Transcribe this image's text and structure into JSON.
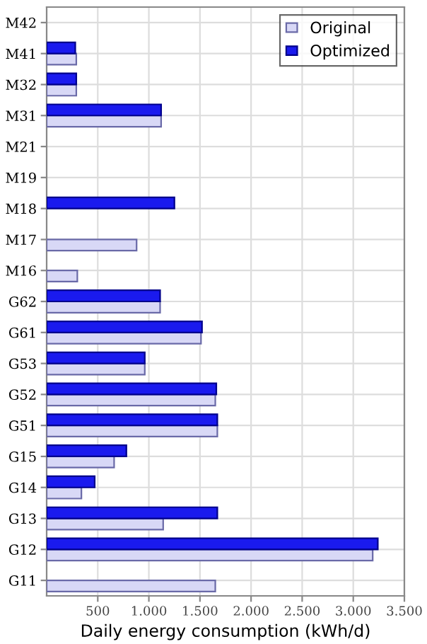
{
  "chart_data": {
    "type": "bar",
    "orientation": "horizontal",
    "xlabel": "Daily energy consumption (kWh/d)",
    "categories": [
      "M42",
      "M41",
      "M32",
      "M31",
      "M21",
      "M19",
      "M18",
      "M17",
      "M16",
      "G62",
      "G61",
      "G53",
      "G52",
      "G51",
      "G15",
      "G14",
      "G13",
      "G12",
      "G11"
    ],
    "series": [
      {
        "name": "Original",
        "color": "#d8d8f6",
        "values": [
          null,
          290,
          290,
          1120,
          null,
          null,
          null,
          880,
          300,
          1110,
          1510,
          960,
          1650,
          1670,
          660,
          340,
          1140,
          3190,
          1650
        ]
      },
      {
        "name": "Optimized",
        "color": "#1a1aee",
        "values": [
          null,
          280,
          290,
          1120,
          null,
          null,
          1250,
          null,
          null,
          1110,
          1520,
          960,
          1660,
          1670,
          780,
          470,
          1670,
          3240,
          null
        ]
      }
    ],
    "xlim": [
      0,
      3500
    ],
    "xticks": [
      500,
      {
        "value": 1000,
        "label": "1.000"
      },
      {
        "value": 1500,
        "label": "1.500"
      },
      {
        "value": 2000,
        "label": "2.000"
      },
      {
        "value": 2500,
        "label": "2.500"
      },
      {
        "value": 3000,
        "label": "3.000"
      },
      {
        "value": 3500,
        "label": "3.500"
      }
    ],
    "grid": true,
    "legend": "top right"
  }
}
